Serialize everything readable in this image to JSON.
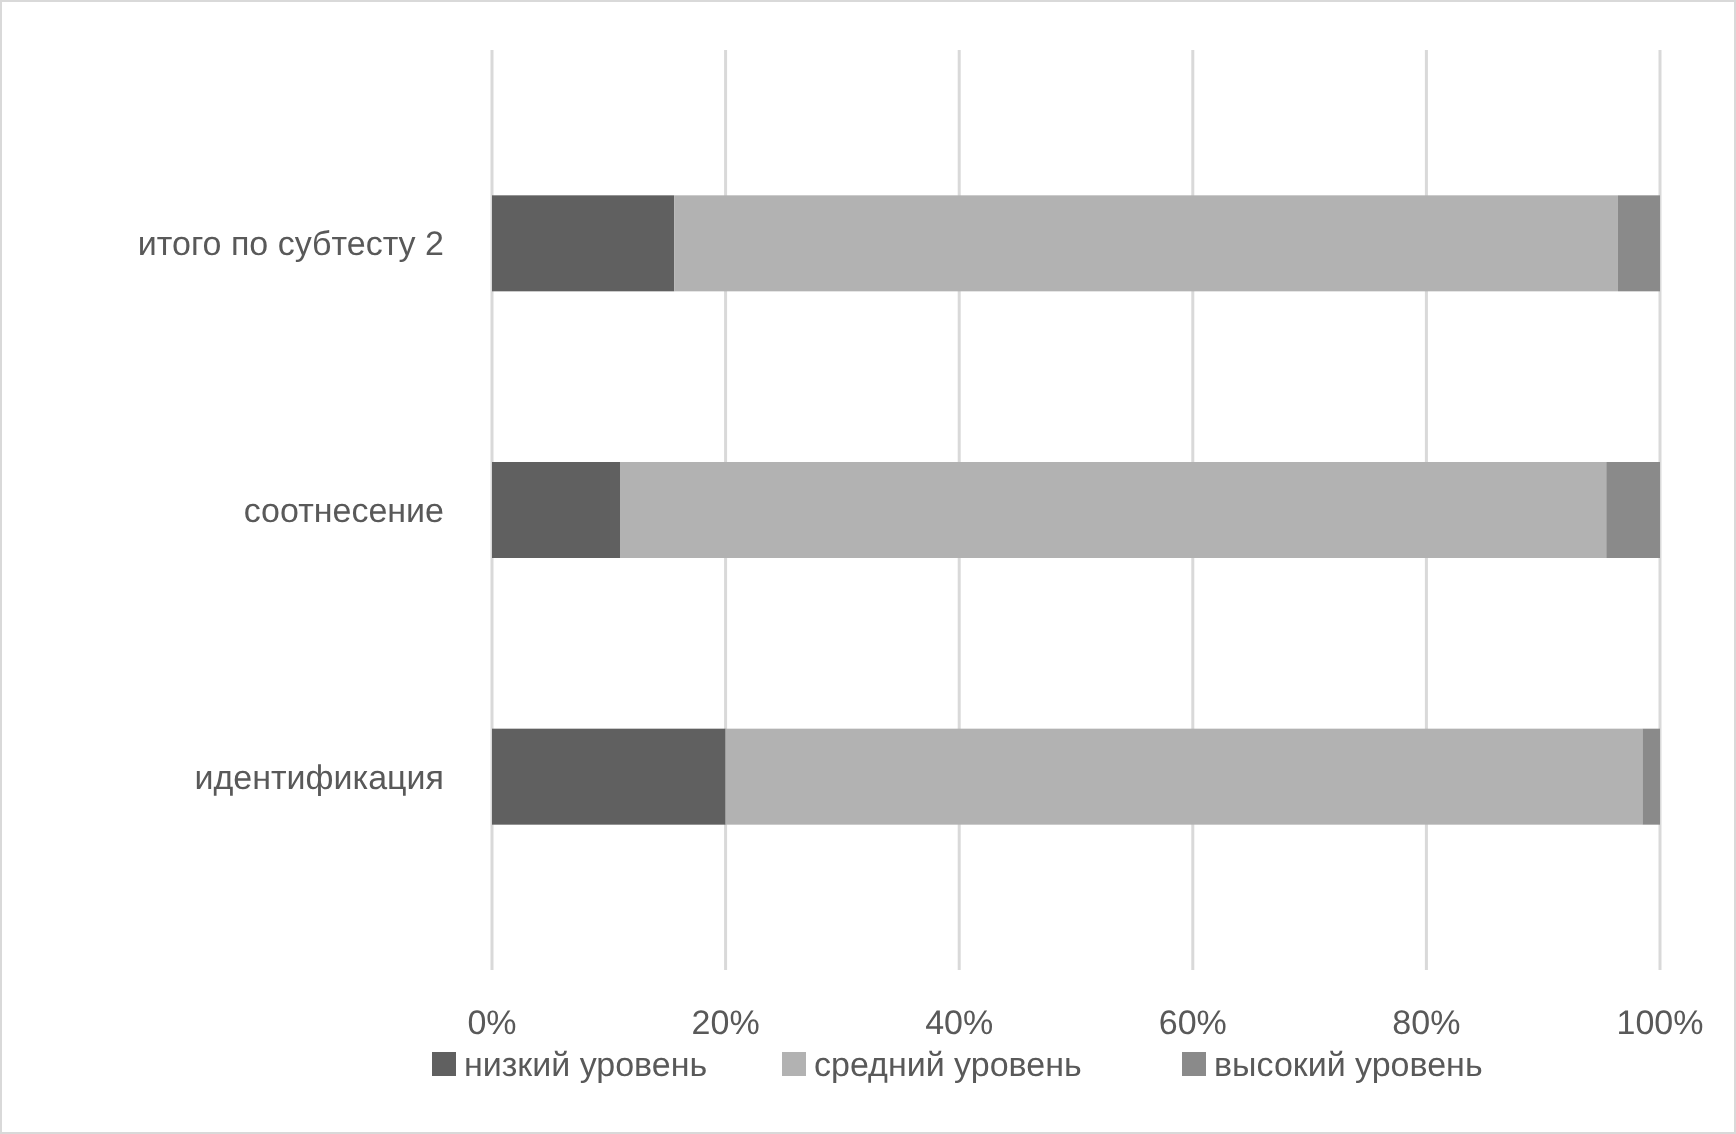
{
  "chart_data": {
    "type": "bar",
    "orientation": "horizontal",
    "stacked": true,
    "categories": [
      "итого по субтесту 2",
      "соотнесение",
      "идентификация"
    ],
    "series": [
      {
        "name": "низкий уровень",
        "color": "#606060",
        "values": [
          15.6,
          11,
          20
        ]
      },
      {
        "name": "средний уровень",
        "color": "#b2b2b2",
        "values": [
          80.8,
          84.4,
          78.5
        ]
      },
      {
        "name": "высокий уровень",
        "color": "#8a8a8a",
        "values": [
          3.6,
          4.6,
          1.5
        ]
      }
    ],
    "xlim": [
      0,
      100
    ],
    "xticks": [
      {
        "value": 0,
        "label": "0%"
      },
      {
        "value": 20,
        "label": "20%"
      },
      {
        "value": 40,
        "label": "40%"
      },
      {
        "value": 60,
        "label": "60%"
      },
      {
        "value": 80,
        "label": "80%"
      },
      {
        "value": 100,
        "label": "100%"
      }
    ],
    "grid": "x",
    "legend": "bottom"
  }
}
